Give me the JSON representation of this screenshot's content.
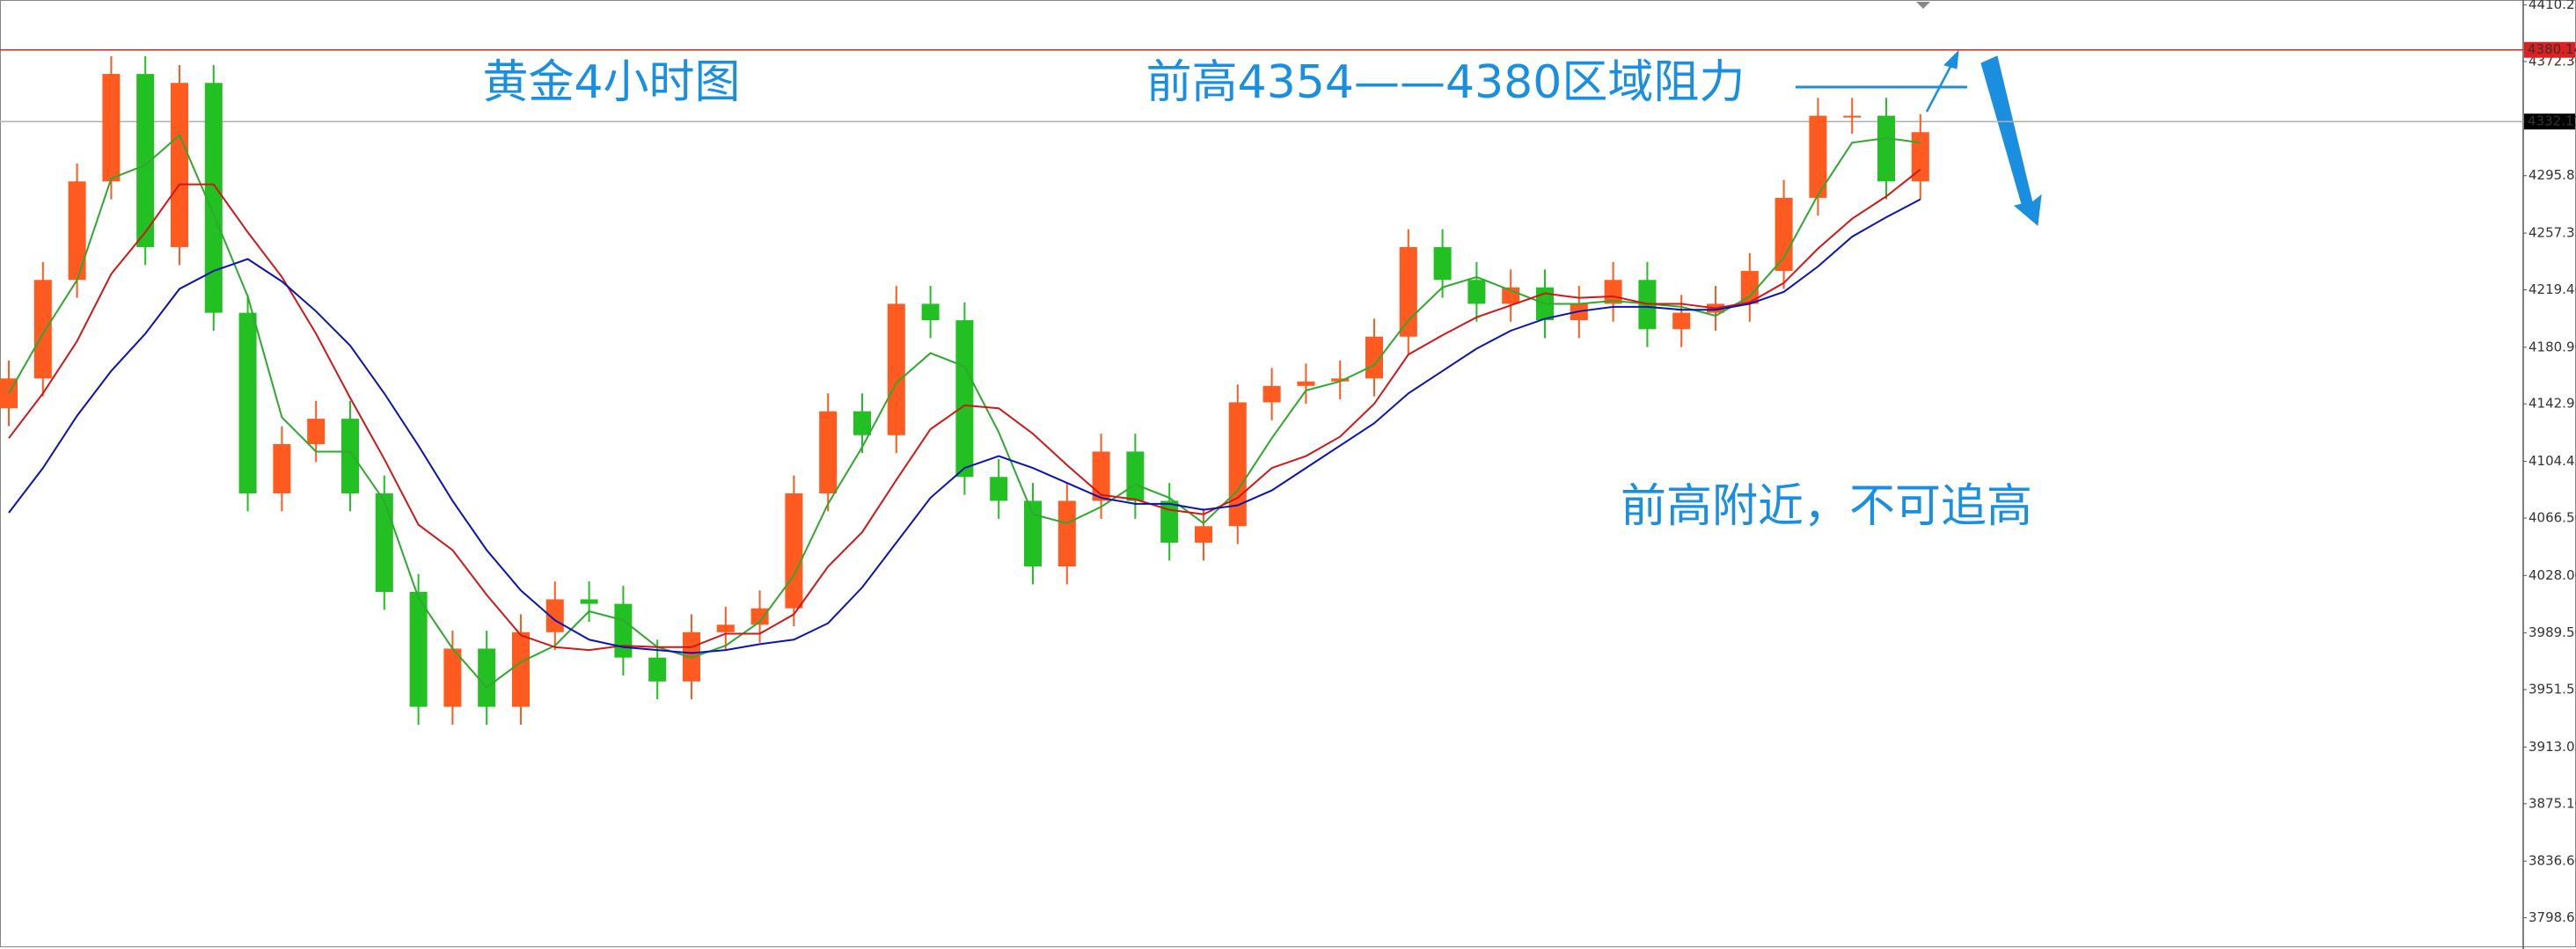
{
  "chart_data": {
    "type": "candlestick",
    "title": "黄金4小时图",
    "annotations": [
      "前高4354——4380区域阻力",
      "前高附近，不可追高"
    ],
    "up_color": "#ff5a1f",
    "down_color": "#22c022",
    "open": [
      4140,
      4160,
      4226,
      4292,
      4364,
      4248,
      4358,
      4204,
      4083,
      4116,
      4133,
      4083,
      4017,
      3940,
      3979,
      3940,
      3990,
      4012,
      4009,
      3973,
      3957,
      3990,
      3995,
      4006,
      4083,
      4138,
      4122,
      4210,
      4199,
      4094,
      4078,
      4034,
      4078,
      4111,
      4078,
      4050,
      4061,
      4144,
      4155,
      4158,
      4160,
      4188,
      4248,
      4226,
      4210,
      4221,
      4199,
      4210,
      4226,
      4193,
      4204,
      4210,
      4232,
      4281,
      4336,
      4336,
      4292
    ],
    "high": [
      4172,
      4238,
      4304,
      4376,
      4376,
      4370,
      4370,
      4216,
      4128,
      4145,
      4145,
      4095,
      4029,
      3991,
      3991,
      4002,
      4024,
      4024,
      4021,
      3985,
      4002,
      4007,
      4018,
      4095,
      4150,
      4150,
      4222,
      4222,
      4211,
      4106,
      4090,
      4090,
      4123,
      4123,
      4090,
      4073,
      4156,
      4167,
      4170,
      4172,
      4200,
      4260,
      4260,
      4238,
      4233,
      4233,
      4222,
      4238,
      4238,
      4216,
      4222,
      4244,
      4293,
      4348,
      4348,
      4348,
      4337
    ],
    "low": [
      4128,
      4148,
      4214,
      4280,
      4236,
      4236,
      4192,
      4071,
      4071,
      4104,
      4071,
      4005,
      3928,
      3928,
      3928,
      3928,
      3978,
      3997,
      3961,
      3945,
      3945,
      3978,
      3983,
      3994,
      4071,
      4110,
      4110,
      4187,
      4082,
      4066,
      4022,
      4022,
      4066,
      4066,
      4038,
      4038,
      4049,
      4132,
      4143,
      4146,
      4148,
      4176,
      4214,
      4198,
      4198,
      4187,
      4187,
      4198,
      4181,
      4181,
      4192,
      4198,
      4220,
      4269,
      4324,
      4280,
      4280
    ],
    "close": [
      4160,
      4226,
      4292,
      4364,
      4248,
      4358,
      4204,
      4083,
      4116,
      4133,
      4083,
      4017,
      3940,
      3979,
      3940,
      3990,
      4012,
      4009,
      3973,
      3957,
      3990,
      3995,
      4006,
      4083,
      4138,
      4122,
      4210,
      4199,
      4094,
      4078,
      4034,
      4078,
      4111,
      4078,
      4050,
      4061,
      4144,
      4155,
      4158,
      4160,
      4188,
      4248,
      4226,
      4210,
      4221,
      4199,
      4210,
      4226,
      4193,
      4204,
      4210,
      4232,
      4281,
      4336,
      4336,
      4292,
      4325
    ],
    "series": [
      {
        "color": "#2fa82f",
        "values": [
          4150,
          4190,
          4226,
          4294,
          4303,
          4323,
          4270,
          4215,
          4134,
          4111,
          4111,
          4078,
          4013,
          3979,
          3953,
          3970,
          3981,
          4004,
          3998,
          3980,
          3973,
          3981,
          3997,
          4028,
          4076,
          4114,
          4157,
          4177,
          4168,
          4124,
          4069,
          4063,
          4074,
          4089,
          4080,
          4063,
          4085,
          4120,
          4152,
          4158,
          4169,
          4199,
          4221,
          4228,
          4219,
          4210,
          4210,
          4212,
          4210,
          4208,
          4202,
          4215,
          4241,
          4283,
          4318,
          4321,
          4318
        ]
      },
      {
        "color": "#d01818",
        "values": [
          4120,
          4150,
          4185,
          4230,
          4258,
          4290,
          4290,
          4258,
          4228,
          4190,
          4147,
          4106,
          4062,
          4045,
          4015,
          3988,
          3980,
          3978,
          3981,
          3980,
          3980,
          3989,
          3989,
          4002,
          4034,
          4057,
          4092,
          4126,
          4142,
          4140,
          4123,
          4102,
          4082,
          4079,
          4072,
          4069,
          4080,
          4100,
          4108,
          4121,
          4143,
          4176,
          4189,
          4201,
          4209,
          4217,
          4214,
          4215,
          4210,
          4210,
          4207,
          4211,
          4224,
          4247,
          4267,
          4282,
          4300
        ]
      },
      {
        "color": "#0b14b0",
        "values": [
          4070,
          4100,
          4135,
          4165,
          4190,
          4220,
          4232,
          4240,
          4225,
          4205,
          4182,
          4150,
          4115,
          4078,
          4045,
          4018,
          3998,
          3985,
          3980,
          3978,
          3976,
          3978,
          3982,
          3985,
          3996,
          4020,
          4050,
          4080,
          4100,
          4108,
          4100,
          4090,
          4080,
          4076,
          4076,
          4072,
          4075,
          4085,
          4100,
          4115,
          4130,
          4150,
          4165,
          4180,
          4192,
          4200,
          4205,
          4208,
          4208,
          4206,
          4206,
          4210,
          4218,
          4235,
          4255,
          4268,
          4280
        ]
      }
    ],
    "ylim": [
      3777.75,
      4413.55
    ],
    "yticks": [
      4410.25,
      {
        "value": 4372.3,
        "label": "4372.30"
      },
      4295.85,
      4257.35,
      {
        "value": 4219.4,
        "label": "4219.40"
      },
      {
        "value": 4180.9,
        "label": "4180.90"
      },
      4142.95,
      4104.45,
      {
        "value": 4066.5,
        "label": "4066.50"
      },
      {
        "value": 4028,
        "label": "4028.00"
      },
      {
        "value": 3989.5,
        "label": "3989.50"
      },
      3951.55,
      3913.05,
      {
        "value": 3875.1,
        "label": "3875.10"
      },
      {
        "value": 3836.6,
        "label": "3836.60"
      },
      3798.65
    ],
    "levels": [
      {
        "value": 4380.14,
        "line_color": "#e02020",
        "tag_color": "#e02020"
      },
      {
        "value": 4332.11,
        "line_color": "#b0b0b0",
        "tag_color": "#000000"
      }
    ]
  }
}
